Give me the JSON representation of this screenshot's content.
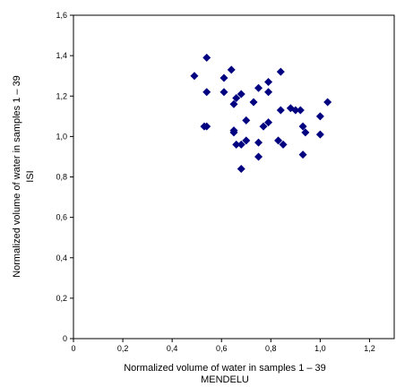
{
  "chart_data": {
    "type": "scatter",
    "xlabel_lines": [
      "Normalized volume of water in samples 1 – 39",
      "MENDELU"
    ],
    "ylabel_lines": [
      "Normalized volume of water in samples 1 – 39",
      "ISI"
    ],
    "xlim": [
      0,
      1.3
    ],
    "ylim": [
      0,
      1.6
    ],
    "xticks": [
      0,
      0.2,
      0.4,
      0.6,
      0.8,
      1.0,
      1.2
    ],
    "xtick_labels": [
      "0",
      "0,2",
      "0,4",
      "0,6",
      "0,8",
      "1,0",
      "1,2"
    ],
    "yticks": [
      0,
      0.2,
      0.4,
      0.6,
      0.8,
      1.0,
      1.2,
      1.4,
      1.6
    ],
    "ytick_labels": [
      "0",
      "0,2",
      "0,4",
      "0,6",
      "0,8",
      "1,0",
      "1,2",
      "1,4",
      "1,6"
    ],
    "grid": false,
    "marker": "diamond",
    "marker_color": "#000080",
    "points": [
      {
        "x": 0.49,
        "y": 1.3
      },
      {
        "x": 0.54,
        "y": 1.39
      },
      {
        "x": 0.54,
        "y": 1.22
      },
      {
        "x": 0.53,
        "y": 1.05
      },
      {
        "x": 0.54,
        "y": 1.05
      },
      {
        "x": 0.61,
        "y": 1.29
      },
      {
        "x": 0.64,
        "y": 1.33
      },
      {
        "x": 0.61,
        "y": 1.22
      },
      {
        "x": 0.66,
        "y": 1.19
      },
      {
        "x": 0.68,
        "y": 1.21
      },
      {
        "x": 0.65,
        "y": 1.16
      },
      {
        "x": 0.7,
        "y": 1.08
      },
      {
        "x": 0.65,
        "y": 1.03
      },
      {
        "x": 0.65,
        "y": 1.02
      },
      {
        "x": 0.66,
        "y": 0.96
      },
      {
        "x": 0.68,
        "y": 0.96
      },
      {
        "x": 0.7,
        "y": 0.98
      },
      {
        "x": 0.68,
        "y": 0.84
      },
      {
        "x": 0.73,
        "y": 1.17
      },
      {
        "x": 0.75,
        "y": 1.24
      },
      {
        "x": 0.75,
        "y": 0.97
      },
      {
        "x": 0.75,
        "y": 0.9
      },
      {
        "x": 0.79,
        "y": 1.27
      },
      {
        "x": 0.79,
        "y": 1.22
      },
      {
        "x": 0.79,
        "y": 1.07
      },
      {
        "x": 0.77,
        "y": 1.05
      },
      {
        "x": 0.84,
        "y": 1.32
      },
      {
        "x": 0.84,
        "y": 1.13
      },
      {
        "x": 0.83,
        "y": 0.98
      },
      {
        "x": 0.85,
        "y": 0.96
      },
      {
        "x": 0.88,
        "y": 1.14
      },
      {
        "x": 0.9,
        "y": 1.13
      },
      {
        "x": 0.92,
        "y": 1.13
      },
      {
        "x": 0.93,
        "y": 1.05
      },
      {
        "x": 0.94,
        "y": 1.02
      },
      {
        "x": 0.93,
        "y": 0.91
      },
      {
        "x": 1.0,
        "y": 1.1
      },
      {
        "x": 1.0,
        "y": 1.01
      },
      {
        "x": 1.03,
        "y": 1.17
      }
    ]
  }
}
